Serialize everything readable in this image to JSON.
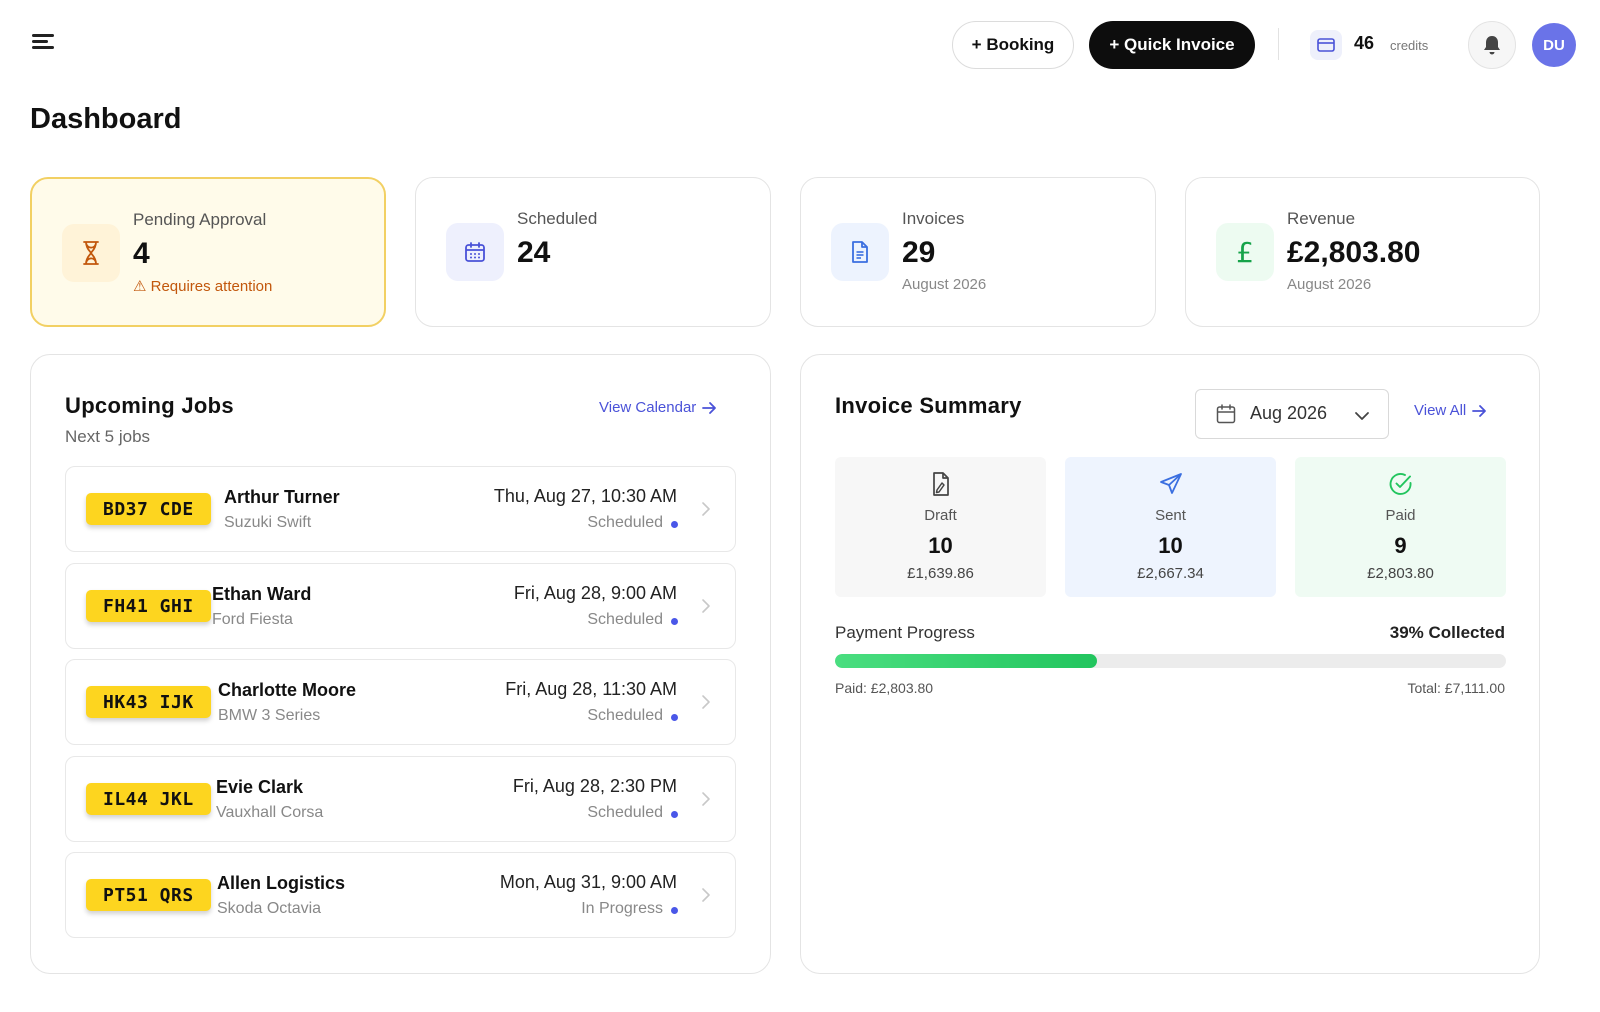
{
  "header": {
    "booking_label": "+ Booking",
    "quick_invoice_label": "+ Quick Invoice",
    "credits_value": "46",
    "credits_label": "credits",
    "avatar_initials": "DU"
  },
  "page": {
    "title": "Dashboard"
  },
  "stats": [
    {
      "label": "Pending Approval",
      "value": "4",
      "sub": "⚠ Requires attention",
      "icon": "hourglass-icon",
      "accent": "#c2570c"
    },
    {
      "label": "Scheduled",
      "value": "24",
      "sub": "",
      "icon": "calendar-icon",
      "accent": "#4a52d8"
    },
    {
      "label": "Invoices",
      "value": "29",
      "sub": "August 2026",
      "icon": "document-icon",
      "accent": "#3b6fe0"
    },
    {
      "label": "Revenue",
      "value": "£2,803.80",
      "sub": "August 2026",
      "icon": "pound-icon",
      "accent": "#16a34a"
    }
  ],
  "upcoming": {
    "title": "Upcoming Jobs",
    "subtitle": "Next 5 jobs",
    "link_label": "View Calendar",
    "jobs": [
      {
        "plate": "BD37 CDE",
        "name": "Arthur Turner",
        "vehicle": "Suzuki Swift",
        "datetime": "Thu, Aug 27, 10:30 AM",
        "status": "Scheduled"
      },
      {
        "plate": "FH41 GHI",
        "name": "Ethan Ward",
        "vehicle": "Ford Fiesta",
        "datetime": "Fri, Aug 28, 9:00 AM",
        "status": "Scheduled"
      },
      {
        "plate": "HK43 IJK",
        "name": "Charlotte Moore",
        "vehicle": "BMW 3 Series",
        "datetime": "Fri, Aug 28, 11:30 AM",
        "status": "Scheduled"
      },
      {
        "plate": "IL44 JKL",
        "name": "Evie Clark",
        "vehicle": "Vauxhall Corsa",
        "datetime": "Fri, Aug 28, 2:30 PM",
        "status": "Scheduled"
      },
      {
        "plate": "PT51 QRS",
        "name": "Allen Logistics",
        "vehicle": "Skoda Octavia",
        "datetime": "Mon, Aug 31, 9:00 AM",
        "status": "In Progress"
      }
    ]
  },
  "invoice_summary": {
    "title": "Invoice Summary",
    "period": "Aug 2026",
    "link_label": "View All",
    "cards": [
      {
        "label": "Draft",
        "count": "10",
        "amount": "£1,639.86",
        "icon": "draft-document-icon",
        "bg": "#f7f7f7"
      },
      {
        "label": "Sent",
        "count": "10",
        "amount": "£2,667.34",
        "icon": "send-icon",
        "bg": "#eef4fe"
      },
      {
        "label": "Paid",
        "count": "9",
        "amount": "£2,803.80",
        "icon": "check-circle-icon",
        "bg": "#effbf3"
      }
    ],
    "progress": {
      "label": "Payment Progress",
      "percent_text": "39% Collected",
      "fraction": 0.39,
      "paid_text": "Paid: £2,803.80",
      "total_text": "Total: £7,111.00"
    }
  }
}
